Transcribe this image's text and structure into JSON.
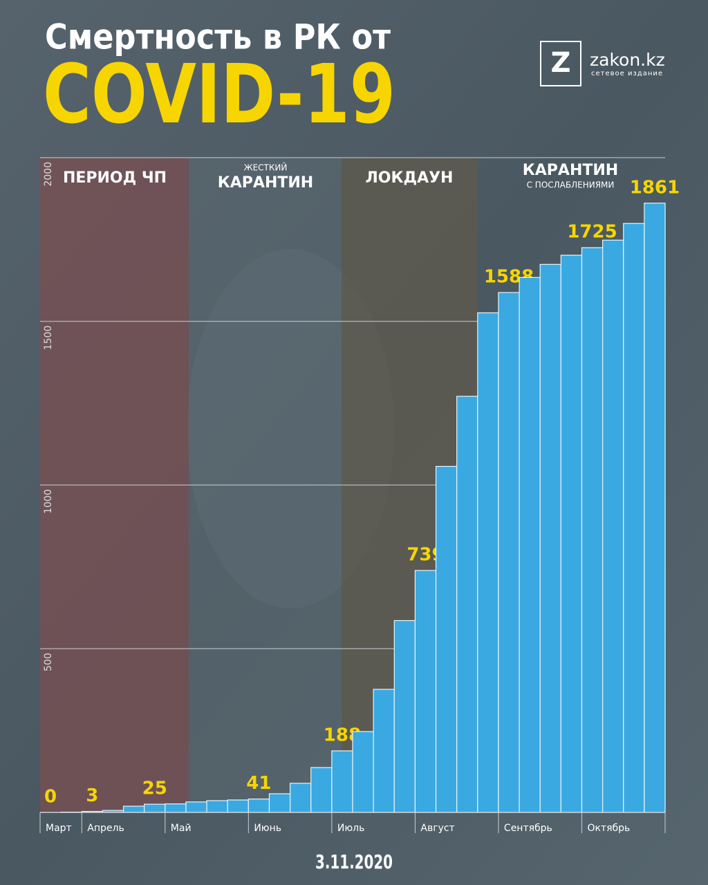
{
  "header": {
    "title": "Смертность в РК от",
    "subtitle": "COVID-19",
    "logo_letter": "Z",
    "logo_name": "zakon.kz",
    "logo_tagline": "сетевое издание"
  },
  "periods": [
    {
      "label": "ПЕРИОД ЧП"
    },
    {
      "small": "ЖЕСТКИЙ",
      "label": "КАРАНТИН"
    },
    {
      "label": "ЛОКДАУН"
    },
    {
      "label": "КАРАНТИН",
      "small": "С ПОСЛАБЛЕНИЯМИ"
    }
  ],
  "chart_data": {
    "type": "bar",
    "categories": [
      "Март",
      null,
      "Апрель",
      null,
      null,
      null,
      "Май",
      null,
      null,
      null,
      "Июнь",
      null,
      null,
      null,
      "Июль",
      null,
      null,
      null,
      "Август",
      null,
      null,
      null,
      "Сентябрь",
      null,
      null,
      null,
      "Октябрь",
      null,
      null,
      null
    ],
    "values": [
      0,
      1,
      3,
      6,
      19,
      25,
      26,
      32,
      36,
      38,
      41,
      57,
      89,
      137,
      188,
      247,
      376,
      586,
      739,
      1057,
      1271,
      1526,
      1588,
      1634,
      1674,
      1702,
      1725,
      1748,
      1799,
      1861
    ],
    "labeled": [
      true,
      false,
      true,
      false,
      false,
      true,
      false,
      false,
      false,
      false,
      true,
      false,
      false,
      false,
      true,
      false,
      false,
      false,
      true,
      false,
      false,
      false,
      true,
      false,
      false,
      false,
      true,
      false,
      false,
      true
    ],
    "color": "#3aa9e1",
    "ylim": [
      0,
      2000
    ],
    "yticks": [
      500,
      1000,
      1500,
      2000
    ],
    "grid": true
  },
  "footer": {
    "date": "3.11.2020"
  }
}
